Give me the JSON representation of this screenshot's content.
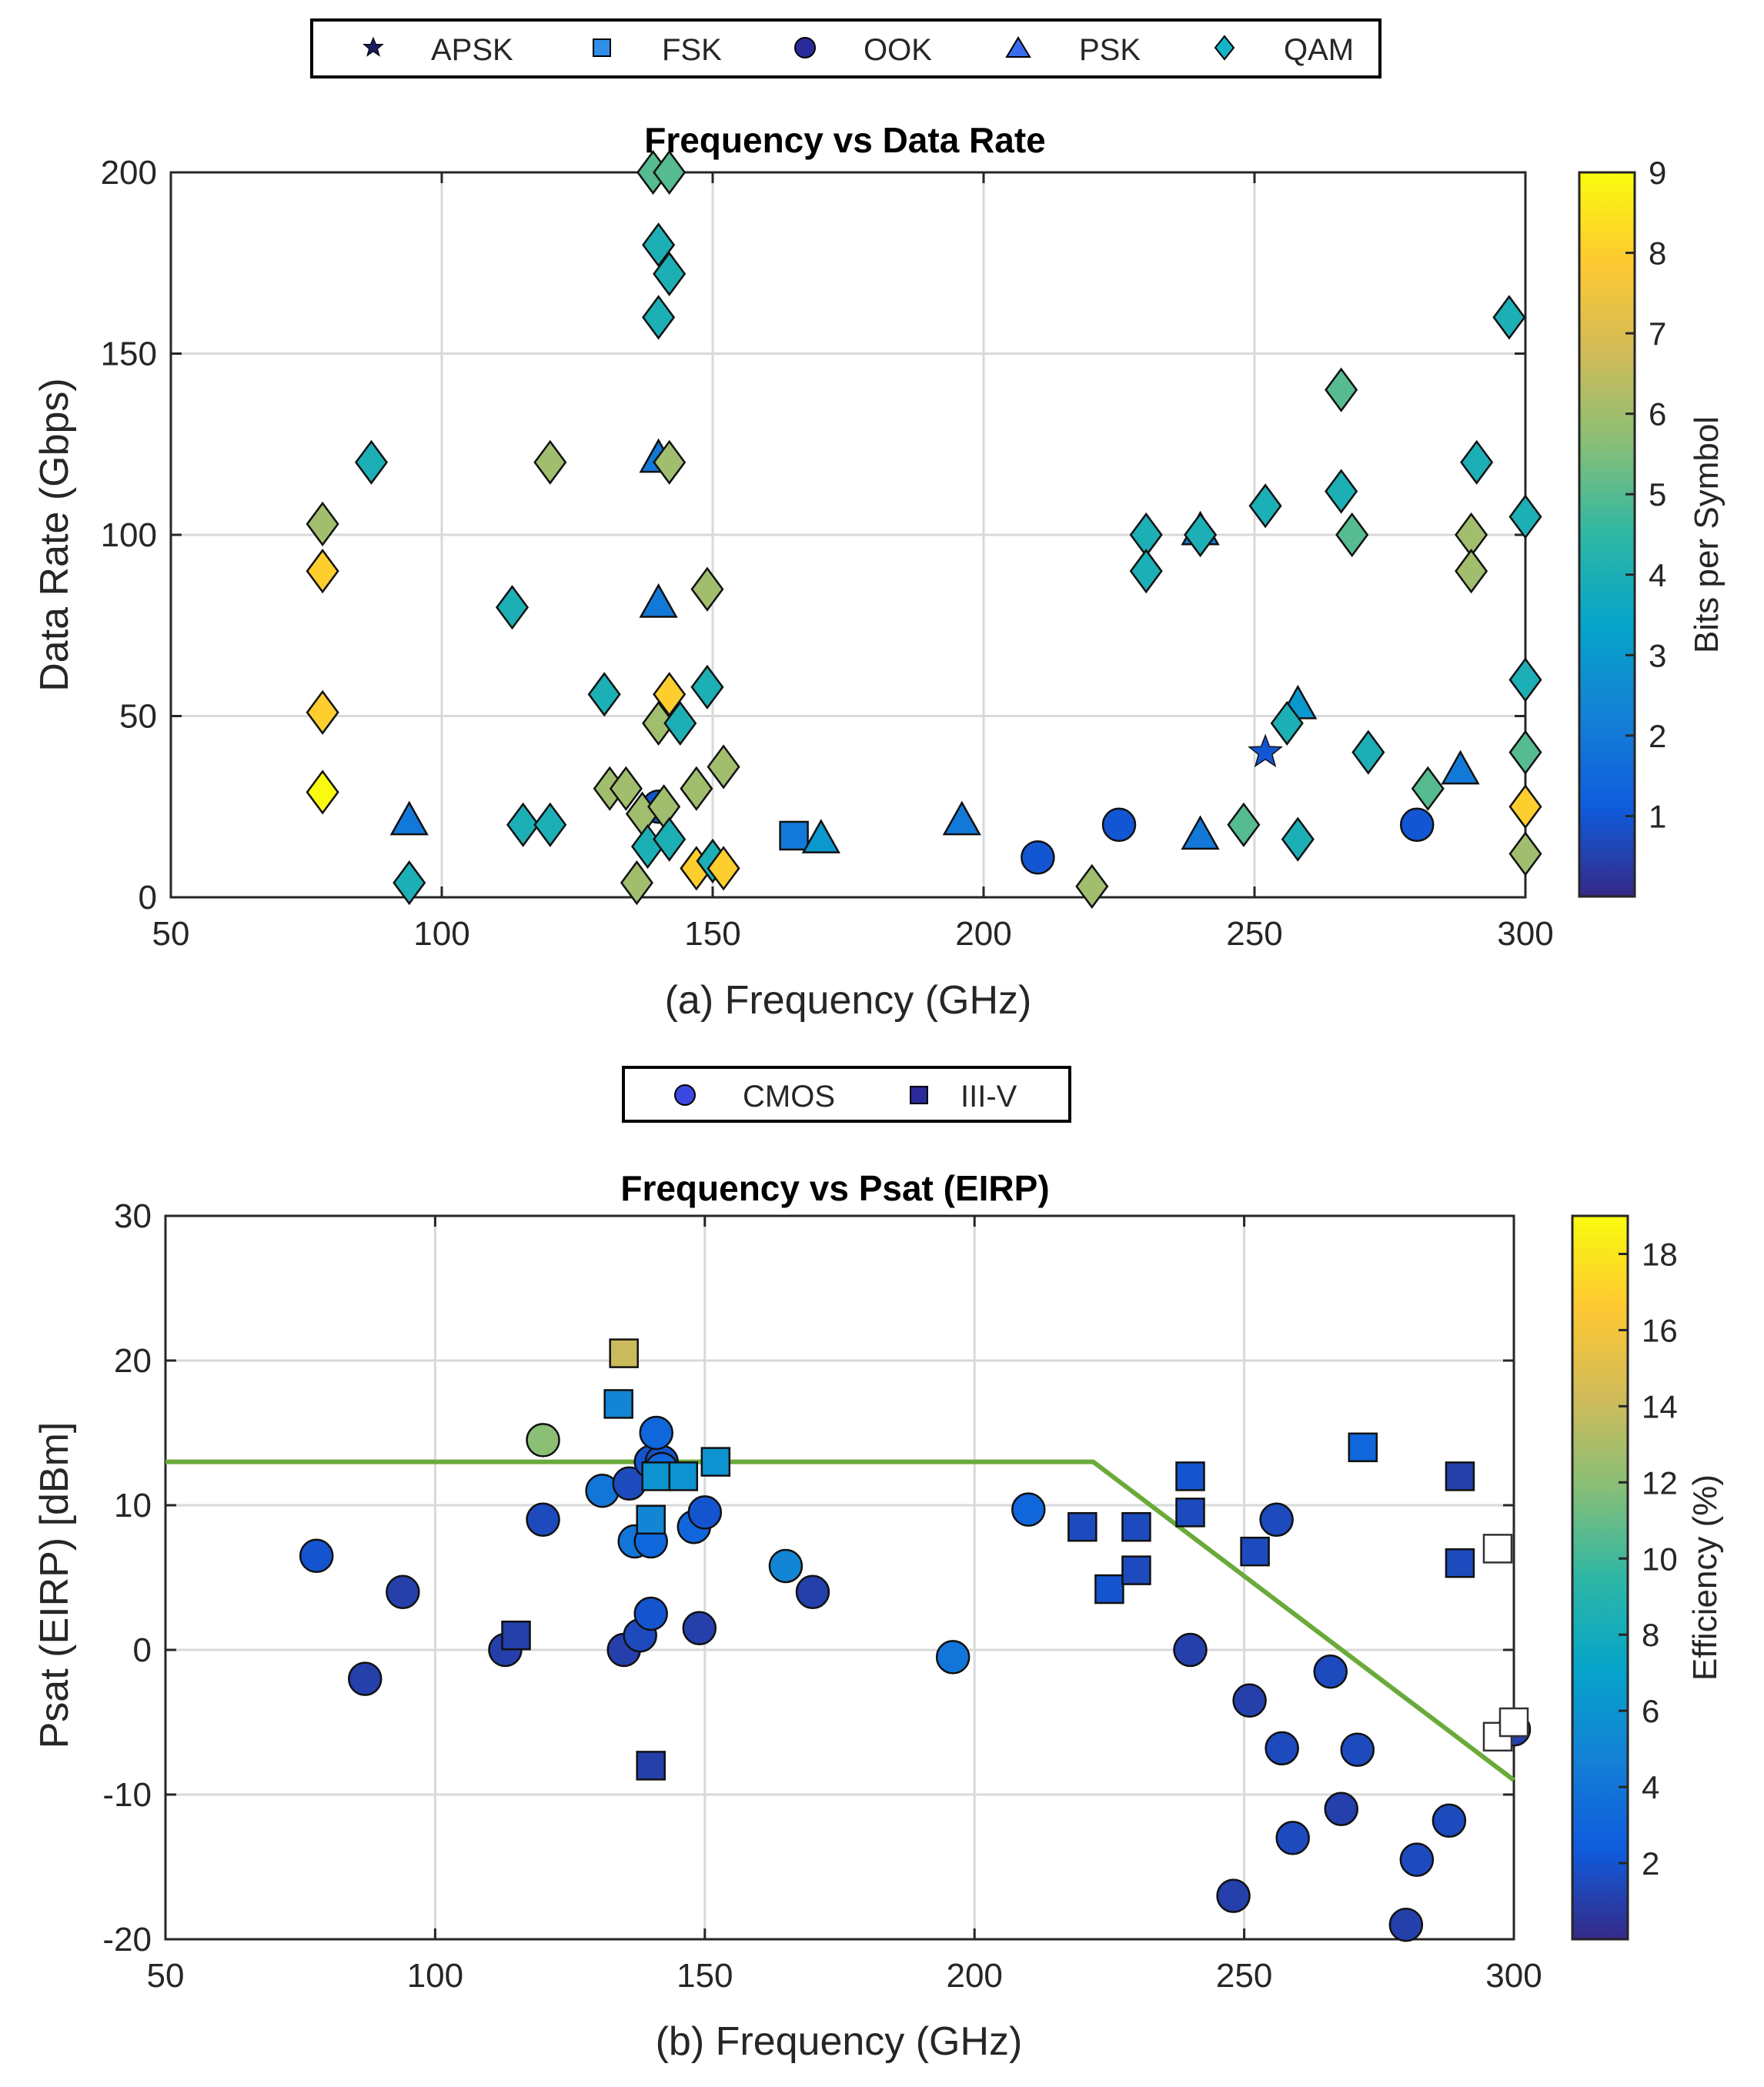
{
  "chart_data": [
    {
      "type": "scatter",
      "title": "Frequency vs Data Rate",
      "xlabel": "(a) Frequency (GHz)",
      "ylabel": "Data Rate (Gbps)",
      "xlim": [
        50,
        300
      ],
      "ylim": [
        0,
        200
      ],
      "xticks": [
        50,
        100,
        150,
        200,
        250,
        300
      ],
      "yticks": [
        0,
        50,
        100,
        150,
        200
      ],
      "grid": true,
      "legend_position": "top-center",
      "colorbar": {
        "label": "Bits per Symbol",
        "min": 0,
        "max": 9,
        "ticks": [
          1,
          2,
          3,
          4,
          5,
          6,
          7,
          8,
          9
        ]
      },
      "series": [
        {
          "name": "APSK",
          "marker": "star",
          "points": [
            [
              252,
              40,
              1
            ]
          ]
        },
        {
          "name": "FSK",
          "marker": "square",
          "points": [
            [
              165,
              17,
              2
            ]
          ]
        },
        {
          "name": "OOK",
          "marker": "circle",
          "points": [
            [
              140,
              25,
              1
            ],
            [
              210,
              11,
              1
            ],
            [
              225,
              20,
              1
            ],
            [
              280,
              20,
              1
            ]
          ]
        },
        {
          "name": "PSK",
          "marker": "triangle",
          "points": [
            [
              94,
              21,
              2
            ],
            [
              140,
              121,
              2
            ],
            [
              140,
              81,
              2
            ],
            [
              170,
              16,
              3
            ],
            [
              196,
              21,
              2
            ],
            [
              240,
              17,
              2
            ],
            [
              240,
              101,
              2
            ],
            [
              258,
              53,
              3
            ],
            [
              288,
              35,
              2
            ]
          ]
        },
        {
          "name": "QAM",
          "marker": "diamond",
          "points": [
            [
              78,
              103,
              6
            ],
            [
              78,
              90,
              8
            ],
            [
              78,
              51,
              8
            ],
            [
              78,
              29,
              9
            ],
            [
              87,
              120,
              4
            ],
            [
              94,
              4,
              4
            ],
            [
              113,
              80,
              4
            ],
            [
              115,
              20,
              4
            ],
            [
              120,
              20,
              4
            ],
            [
              120,
              120,
              6
            ],
            [
              130,
              56,
              4
            ],
            [
              131,
              30,
              6
            ],
            [
              134,
              30,
              6
            ],
            [
              136,
              4,
              6
            ],
            [
              137,
              23,
              6
            ],
            [
              138,
              14,
              4
            ],
            [
              139,
              200,
              5
            ],
            [
              140,
              180,
              4
            ],
            [
              140,
              160,
              4
            ],
            [
              140,
              48,
              6
            ],
            [
              141,
              25,
              6
            ],
            [
              142,
              200,
              5
            ],
            [
              142,
              172,
              4
            ],
            [
              142,
              120,
              6
            ],
            [
              142,
              56,
              8
            ],
            [
              142,
              16,
              4
            ],
            [
              144,
              48,
              4
            ],
            [
              147,
              30,
              6
            ],
            [
              147,
              8,
              8
            ],
            [
              149,
              85,
              6
            ],
            [
              149,
              58,
              4
            ],
            [
              150,
              10,
              4
            ],
            [
              152,
              8,
              8
            ],
            [
              152,
              36,
              6
            ],
            [
              220,
              3,
              6
            ],
            [
              230,
              100,
              4
            ],
            [
              230,
              90,
              4
            ],
            [
              240,
              100,
              4
            ],
            [
              248,
              20,
              5
            ],
            [
              252,
              108,
              4
            ],
            [
              256,
              48,
              4
            ],
            [
              258,
              16,
              4
            ],
            [
              266,
              140,
              5
            ],
            [
              266,
              112,
              4
            ],
            [
              268,
              100,
              5
            ],
            [
              271,
              40,
              4
            ],
            [
              282,
              30,
              5
            ],
            [
              290,
              100,
              6
            ],
            [
              290,
              90,
              6
            ],
            [
              291,
              120,
              4
            ],
            [
              297,
              160,
              4
            ],
            [
              300,
              105,
              4
            ],
            [
              300,
              60,
              4
            ],
            [
              300,
              40,
              5
            ],
            [
              300,
              25,
              8
            ],
            [
              300,
              12,
              6
            ]
          ]
        }
      ]
    },
    {
      "type": "scatter",
      "title": "Frequency vs Psat (EIRP)",
      "xlabel": "(b) Frequency (GHz)",
      "ylabel": "Psat (EIRP) [dBm]",
      "xlim": [
        50,
        300
      ],
      "ylim": [
        -20,
        30
      ],
      "xticks": [
        50,
        100,
        150,
        200,
        250,
        300
      ],
      "yticks": [
        -20,
        -10,
        0,
        10,
        20,
        30
      ],
      "grid": true,
      "legend_position": "top-center",
      "colorbar": {
        "label": "Efficiency (%)",
        "min": 0,
        "max": 19,
        "ticks": [
          2,
          4,
          6,
          8,
          10,
          12,
          14,
          16,
          18
        ]
      },
      "trend_line": {
        "color": "#6aaa3a",
        "points": [
          [
            50,
            13
          ],
          [
            222,
            13
          ],
          [
            300,
            -9
          ]
        ]
      },
      "series": [
        {
          "name": "CMOS",
          "marker": "circle",
          "points": [
            [
              78,
              6.5,
              2
            ],
            [
              87,
              -2,
              1
            ],
            [
              94,
              4,
              1
            ],
            [
              113,
              0,
              1
            ],
            [
              120,
              9,
              1.5
            ],
            [
              120,
              14.5,
              12
            ],
            [
              131,
              11,
              4
            ],
            [
              135,
              0,
              1
            ],
            [
              136,
              11.5,
              1.5
            ],
            [
              137,
              7.5,
              4
            ],
            [
              138,
              1,
              1.5
            ],
            [
              140,
              2.5,
              2
            ],
            [
              140,
              7.5,
              3
            ],
            [
              140,
              13,
              2
            ],
            [
              142,
              13,
              2
            ],
            [
              141,
              15,
              3
            ],
            [
              142,
              12.5,
              3
            ],
            [
              148,
              8.5,
              3
            ],
            [
              149,
              1.5,
              1
            ],
            [
              150,
              9.5,
              2
            ],
            [
              165,
              5.8,
              5
            ],
            [
              170,
              4,
              1
            ],
            [
              196,
              -0.5,
              4
            ],
            [
              210,
              9.7,
              3
            ],
            [
              240,
              0,
              1
            ],
            [
              248,
              -17,
              1
            ],
            [
              251,
              -3.5,
              1
            ],
            [
              256,
              9,
              1.5
            ],
            [
              257,
              -6.8,
              1.5
            ],
            [
              259,
              -13,
              1.5
            ],
            [
              266,
              -1.5,
              1.5
            ],
            [
              268,
              -11,
              1
            ],
            [
              271,
              -6.9,
              1.5
            ],
            [
              280,
              -19,
              1
            ],
            [
              282,
              -14.5,
              1.5
            ],
            [
              288,
              -11.8,
              1.5
            ],
            [
              300,
              -5.5,
              1
            ]
          ]
        },
        {
          "name": "III-V",
          "marker": "square",
          "points": [
            [
              115,
              1,
              1
            ],
            [
              134,
              17,
              5
            ],
            [
              135,
              20.5,
              14
            ],
            [
              140,
              -8,
              1
            ],
            [
              140,
              9,
              5
            ],
            [
              141,
              12,
              6
            ],
            [
              146,
              12,
              6
            ],
            [
              152,
              13,
              6
            ],
            [
              220,
              8.5,
              1.5
            ],
            [
              225,
              4.2,
              2
            ],
            [
              230,
              8.5,
              1.5
            ],
            [
              230,
              5.5,
              1.5
            ],
            [
              240,
              12,
              2
            ],
            [
              240,
              9.5,
              1.5
            ],
            [
              252,
              6.8,
              1.5
            ],
            [
              272,
              14,
              3
            ],
            [
              290,
              12,
              1
            ],
            [
              290,
              6,
              1.5
            ],
            [
              297,
              7,
              null
            ],
            [
              297,
              -6,
              null
            ],
            [
              300,
              -5,
              null
            ]
          ]
        }
      ]
    }
  ]
}
